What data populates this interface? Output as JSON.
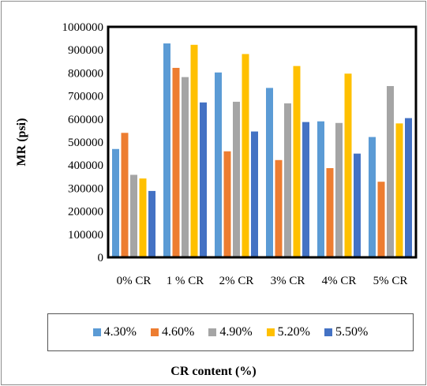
{
  "chart_data": {
    "type": "bar",
    "title": "",
    "xlabel": "CR content (%)",
    "ylabel": "MR (psi)",
    "ylim": [
      0,
      1000000
    ],
    "yticks": [
      "0",
      "100000",
      "200000",
      "300000",
      "400000",
      "500000",
      "600000",
      "700000",
      "800000",
      "900000",
      "1000000"
    ],
    "categories": [
      "0% CR",
      "1 % CR",
      "2% CR",
      "3% CR",
      "4% CR",
      "5% CR"
    ],
    "series": [
      {
        "name": "4.30%",
        "color": "#5b9bd5",
        "values": [
          470000,
          928000,
          802000,
          735000,
          590000,
          522000
        ]
      },
      {
        "name": "4.60%",
        "color": "#ed7d31",
        "values": [
          540000,
          822000,
          460000,
          422000,
          387000,
          328000
        ]
      },
      {
        "name": "4.90%",
        "color": "#a5a5a5",
        "values": [
          358000,
          782000,
          675000,
          668000,
          583000,
          743000
        ]
      },
      {
        "name": "5.20%",
        "color": "#ffc000",
        "values": [
          342000,
          922000,
          882000,
          830000,
          797000,
          581000
        ]
      },
      {
        "name": "5.50%",
        "color": "#4472c4",
        "values": [
          288000,
          672000,
          546000,
          587000,
          450000,
          604000
        ]
      }
    ],
    "grid": false,
    "legend": "bottom"
  }
}
